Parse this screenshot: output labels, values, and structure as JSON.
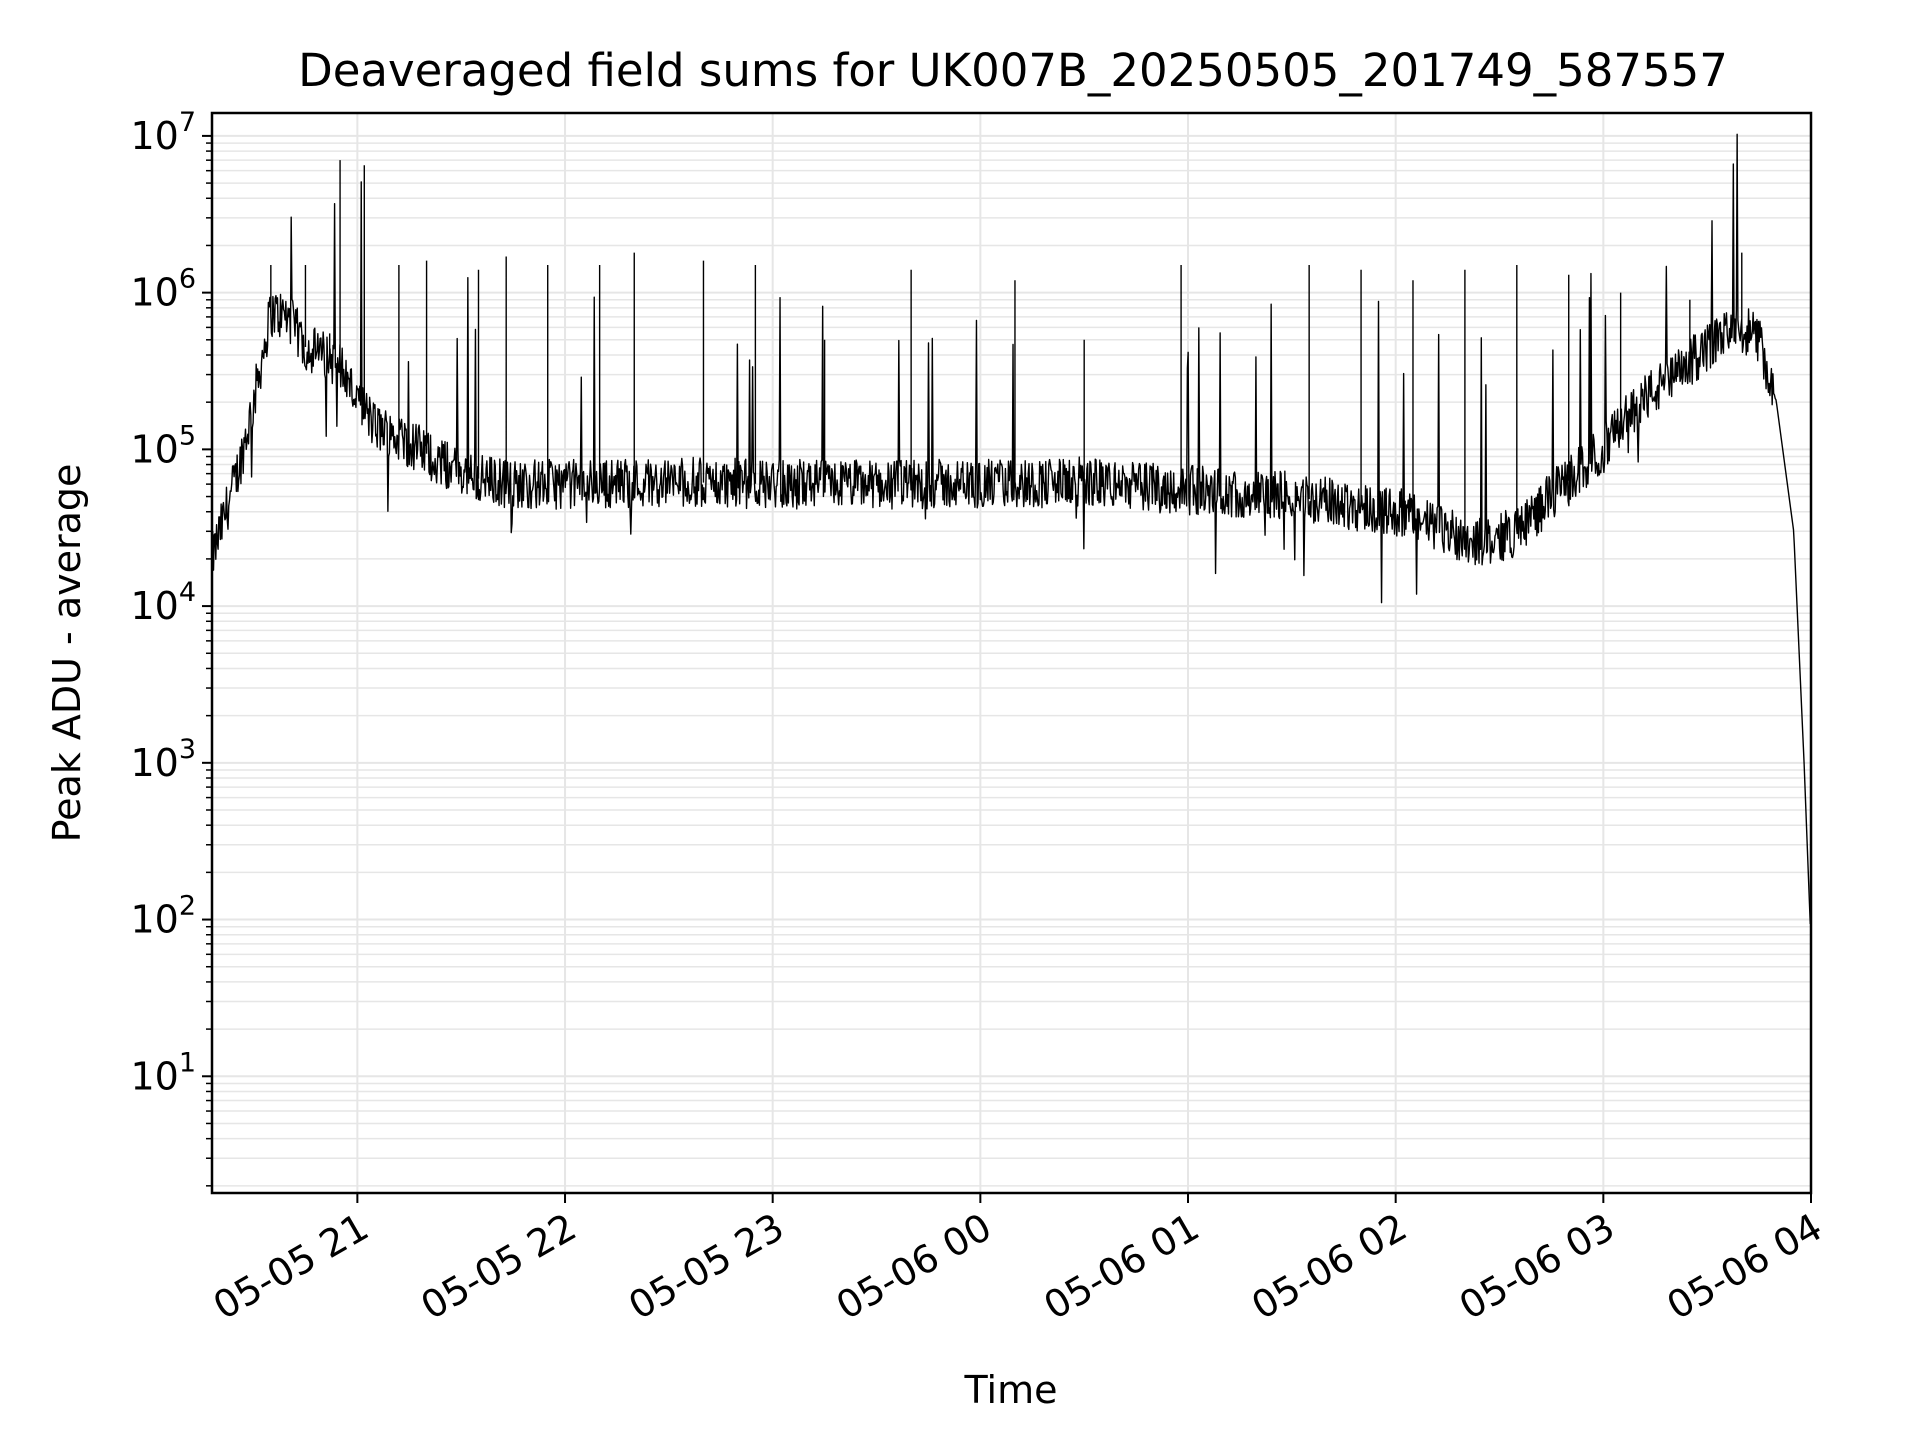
{
  "chart_data": {
    "type": "line",
    "title": "Deaveraged field sums for UK007B_20250505_201749_587557",
    "xlabel": "Time",
    "ylabel": "Peak ADU - average",
    "yscale": "log",
    "xlim": [
      "2025-05-05 20:18",
      "2025-05-06 04:00"
    ],
    "ylim": [
      1.8,
      14000000
    ],
    "grid": true,
    "line_color": "#000000",
    "x_ticks": [
      "05-05 21",
      "05-05 22",
      "05-05 23",
      "05-06 00",
      "05-06 01",
      "05-06 02",
      "05-06 03",
      "05-06 04"
    ],
    "y_ticks": [
      {
        "base": "10",
        "exp": "1",
        "value": 10
      },
      {
        "base": "10",
        "exp": "2",
        "value": 100
      },
      {
        "base": "10",
        "exp": "3",
        "value": 1000
      },
      {
        "base": "10",
        "exp": "4",
        "value": 10000
      },
      {
        "base": "10",
        "exp": "5",
        "value": 100000
      },
      {
        "base": "10",
        "exp": "6",
        "value": 1000000
      },
      {
        "base": "10",
        "exp": "7",
        "value": 10000000
      }
    ],
    "series": [
      {
        "x": [
          "20:18",
          "20:22",
          "20:26",
          "20:30",
          "20:35",
          "20:40",
          "20:45",
          "20:50",
          "20:55",
          "20:58",
          "21:05",
          "21:15",
          "21:25",
          "21:35",
          "21:45",
          "22:00",
          "22:30",
          "23:00",
          "23:30",
          "00:00",
          "00:30",
          "01:00",
          "01:30",
          "02:00",
          "02:15",
          "02:25",
          "02:35",
          "02:45",
          "03:00",
          "03:10",
          "03:20",
          "03:30",
          "03:40",
          "03:45",
          "03:50",
          "03:55",
          "03:58",
          "04:00"
        ],
        "values": [
          20000,
          40000,
          80000,
          200000,
          750000,
          700000,
          450000,
          400000,
          350000,
          250000,
          140000,
          110000,
          80000,
          65000,
          60000,
          60000,
          62000,
          60000,
          60000,
          60000,
          62000,
          55000,
          50000,
          40000,
          30000,
          25000,
          30000,
          50000,
          100000,
          200000,
          280000,
          450000,
          600000,
          500000,
          200000,
          30000,
          1000,
          70
        ]
      }
    ],
    "spikes": [
      {
        "x": "20:35",
        "value": 1500000
      },
      {
        "x": "20:40",
        "value": 700000
      },
      {
        "x": "20:45",
        "value": 1500000
      },
      {
        "x": "20:52",
        "value": 550000
      },
      {
        "x": "20:55",
        "value": 7000000
      },
      {
        "x": "21:02",
        "value": 6500000
      },
      {
        "x": "21:12",
        "value": 1500000
      },
      {
        "x": "21:20",
        "value": 1600000
      },
      {
        "x": "21:35",
        "value": 1400000
      },
      {
        "x": "21:43",
        "value": 1700000
      },
      {
        "x": "21:55",
        "value": 1500000
      },
      {
        "x": "22:10",
        "value": 1500000
      },
      {
        "x": "22:20",
        "value": 1800000
      },
      {
        "x": "22:40",
        "value": 1600000
      },
      {
        "x": "22:55",
        "value": 1500000
      },
      {
        "x": "23:15",
        "value": 500000
      },
      {
        "x": "23:40",
        "value": 1400000
      },
      {
        "x": "00:10",
        "value": 1200000
      },
      {
        "x": "00:30",
        "value": 500000
      },
      {
        "x": "00:58",
        "value": 1500000
      },
      {
        "x": "01:35",
        "value": 1500000
      },
      {
        "x": "01:50",
        "value": 1400000
      },
      {
        "x": "02:05",
        "value": 1200000
      },
      {
        "x": "02:20",
        "value": 1400000
      },
      {
        "x": "02:35",
        "value": 1500000
      },
      {
        "x": "02:50",
        "value": 1300000
      },
      {
        "x": "03:05",
        "value": 1000000
      },
      {
        "x": "03:25",
        "value": 900000
      },
      {
        "x": "03:40",
        "value": 1800000
      }
    ]
  }
}
